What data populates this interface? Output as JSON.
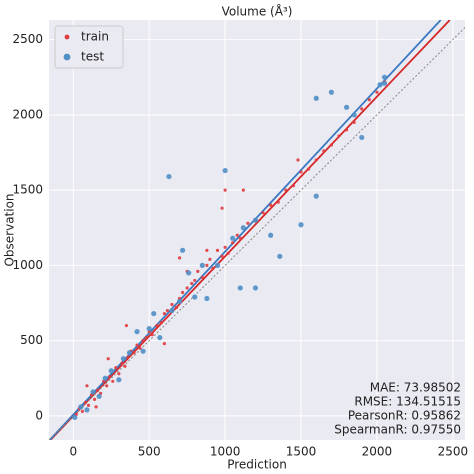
{
  "chart_data": {
    "type": "scatter",
    "title": "Volume (Å³)",
    "x_label": "Prediction",
    "y_label": "Observation",
    "xlim": [
      -160,
      2580
    ],
    "ylim": [
      -160,
      2630
    ],
    "xticks": [
      0,
      500,
      1000,
      1500,
      2000,
      2500
    ],
    "yticks": [
      0,
      500,
      1000,
      1500,
      2000,
      2500
    ],
    "grid": true,
    "legend": "upper left",
    "series": [
      {
        "name": "train",
        "color": "#e03a3e",
        "marker_size": 1.6,
        "x": [
          20,
          40,
          60,
          80,
          100,
          120,
          140,
          160,
          180,
          200,
          220,
          240,
          260,
          280,
          300,
          320,
          340,
          360,
          380,
          400,
          420,
          440,
          460,
          480,
          500,
          520,
          550,
          580,
          600,
          620,
          650,
          680,
          700,
          720,
          750,
          780,
          800,
          820,
          850,
          880,
          900,
          920,
          950,
          980,
          1000,
          1020,
          1050,
          1080,
          1100,
          1150,
          1200,
          1250,
          1300,
          1350,
          1400,
          1450,
          1500,
          1550,
          1600,
          1650,
          1700,
          1750,
          1800,
          1850,
          1900,
          1950,
          2000,
          2050,
          1480,
          1120,
          980,
          700,
          750,
          600,
          880,
          1000,
          350,
          230,
          150,
          90
        ],
        "values": [
          10,
          50,
          30,
          90,
          70,
          140,
          110,
          170,
          150,
          230,
          200,
          260,
          230,
          320,
          280,
          350,
          330,
          390,
          430,
          420,
          470,
          450,
          500,
          520,
          560,
          540,
          600,
          620,
          680,
          700,
          740,
          720,
          780,
          820,
          850,
          880,
          900,
          960,
          920,
          1000,
          1040,
          980,
          1100,
          1060,
          1120,
          1080,
          1150,
          1200,
          1180,
          1280,
          1300,
          1350,
          1400,
          1420,
          1500,
          1530,
          1620,
          1640,
          1700,
          1760,
          1800,
          1860,
          1900,
          1950,
          2040,
          2100,
          2150,
          2220,
          1700,
          1500,
          1380,
          1050,
          960,
          480,
          1100,
          1500,
          600,
          380,
          60,
          200
        ]
      },
      {
        "name": "test",
        "color": "#4f8fc6",
        "marker_size": 2.6,
        "x": [
          10,
          50,
          90,
          130,
          170,
          210,
          250,
          300,
          330,
          370,
          420,
          460,
          500,
          530,
          570,
          630,
          650,
          700,
          720,
          760,
          800,
          850,
          880,
          950,
          1000,
          1050,
          1100,
          1120,
          1200,
          1300,
          1360,
          1500,
          1600,
          1600,
          1700,
          1800,
          1850,
          1900,
          2020,
          2050,
          2050,
          1200
        ],
        "values": [
          -10,
          60,
          40,
          160,
          130,
          250,
          300,
          240,
          380,
          420,
          560,
          430,
          580,
          680,
          520,
          1590,
          700,
          760,
          1100,
          950,
          790,
          1000,
          780,
          1000,
          1630,
          1180,
          850,
          1250,
          850,
          1200,
          1060,
          1270,
          1460,
          2110,
          2150,
          2050,
          2000,
          1850,
          2200,
          2210,
          2250,
          1300
        ]
      }
    ],
    "lines": [
      {
        "color": "#d62728",
        "x": [
          -160,
          2480
        ],
        "values": [
          -170,
          2630
        ]
      },
      {
        "color": "#3a78c2",
        "x": [
          -160,
          2420
        ],
        "values": [
          -165,
          2630
        ]
      },
      {
        "color": "#888888",
        "dash": true,
        "x": [
          -160,
          2580
        ],
        "values": [
          -160,
          2580
        ]
      }
    ],
    "annotations": [
      "MAE: 73.98502",
      "RMSE: 134.51515",
      "PearsonR: 0.95862",
      "SpearmanR: 0.97550"
    ]
  }
}
